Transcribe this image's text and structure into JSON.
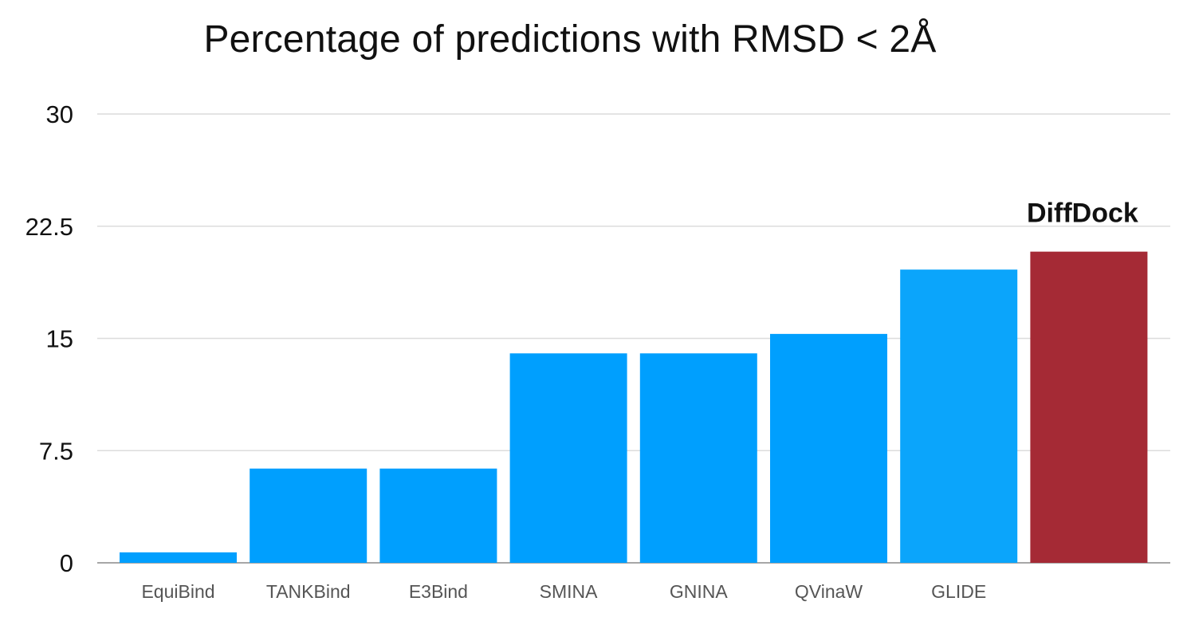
{
  "chart_data": {
    "type": "bar",
    "title": "Percentage of predictions with RMSD < 2Å",
    "categories": [
      "EquiBind",
      "TANKBind",
      "E3Bind",
      "SMINA",
      "GNINA",
      "QVinaW",
      "GLIDE",
      "DiffDock"
    ],
    "values": [
      0.7,
      6.3,
      6.3,
      14.0,
      14.0,
      15.3,
      19.6,
      20.8
    ],
    "bar_colors": [
      "#009ffe",
      "#009ffe",
      "#009ffe",
      "#009ffe",
      "#009ffe",
      "#009ffe",
      "#0ba5fb",
      "#a52a35"
    ],
    "ylim": [
      0,
      30
    ],
    "yticks": [
      0,
      7.5,
      15,
      22.5,
      30
    ],
    "ytick_labels": [
      "0",
      "7.5",
      "15",
      "22.5",
      "30"
    ],
    "grid": true,
    "annotations": [
      {
        "category": "DiffDock",
        "text": "DiffDock"
      }
    ],
    "show_category_label": [
      true,
      true,
      true,
      true,
      true,
      true,
      true,
      false
    ]
  }
}
